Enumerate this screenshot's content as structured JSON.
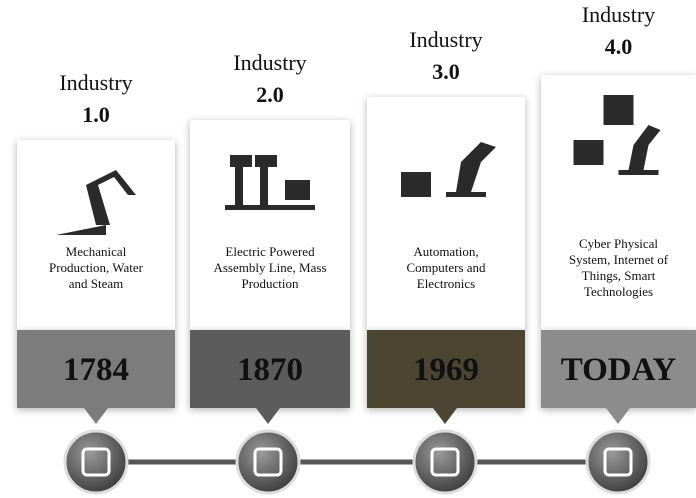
{
  "stages": [
    {
      "label": "Industry",
      "version": "1.0",
      "description": [
        "Mechanical",
        "Production, Water",
        "and Steam"
      ],
      "year": "1784"
    },
    {
      "label": "Industry",
      "version": "2.0",
      "description": [
        "Electric Powered",
        "Assembly Line, Mass",
        "Production"
      ],
      "year": "1870"
    },
    {
      "label": "Industry",
      "version": "3.0",
      "description": [
        "Automation,",
        "Computers and",
        "Electronics"
      ],
      "year": "1969"
    },
    {
      "label": "Industry",
      "version": "4.0",
      "description": [
        "Cyber Physical",
        "System, Internet of",
        "Things, Smart",
        "Technologies"
      ],
      "year": "TODAY"
    }
  ]
}
